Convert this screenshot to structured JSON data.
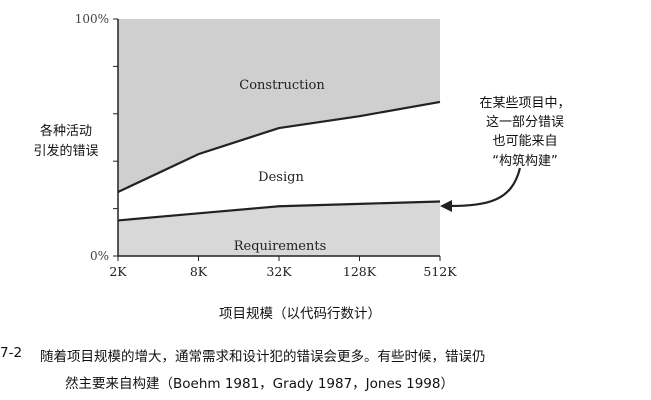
{
  "chart_data": {
    "type": "area",
    "x_tick_labels": [
      "2K",
      "8K",
      "32K",
      "128K",
      "512K"
    ],
    "y_tick_labels": [
      "100%",
      "0%"
    ],
    "ylim": [
      0,
      100
    ],
    "xlabel": "项目规模（以代码行数计）",
    "ylabel_lines": [
      "各种活动",
      "引发的错误"
    ],
    "series": [
      {
        "name": "Requirements",
        "values": [
          15,
          18,
          21,
          22,
          23
        ]
      },
      {
        "name": "Design",
        "values": [
          12,
          25,
          33,
          37,
          42
        ]
      },
      {
        "name": "Construction",
        "values": [
          73,
          57,
          46,
          41,
          35
        ]
      }
    ],
    "annotation_lines": [
      "在某些项目中，",
      "这一部分错误",
      "也可能来自",
      "“构筑构建”"
    ],
    "grid": false
  },
  "caption": {
    "number": "7-2",
    "line1": "随着项目规模的增大，通常需求和设计犯的错误会更多。有些时候，错误仍",
    "line2": "然主要来自构建（Boehm 1981，Grady 1987，Jones 1998）"
  },
  "colors": {
    "construction_fill": "#cfcfcf",
    "design_fill": "#ffffff",
    "requirements_fill": "#d8d8d8",
    "line": "#222222"
  }
}
